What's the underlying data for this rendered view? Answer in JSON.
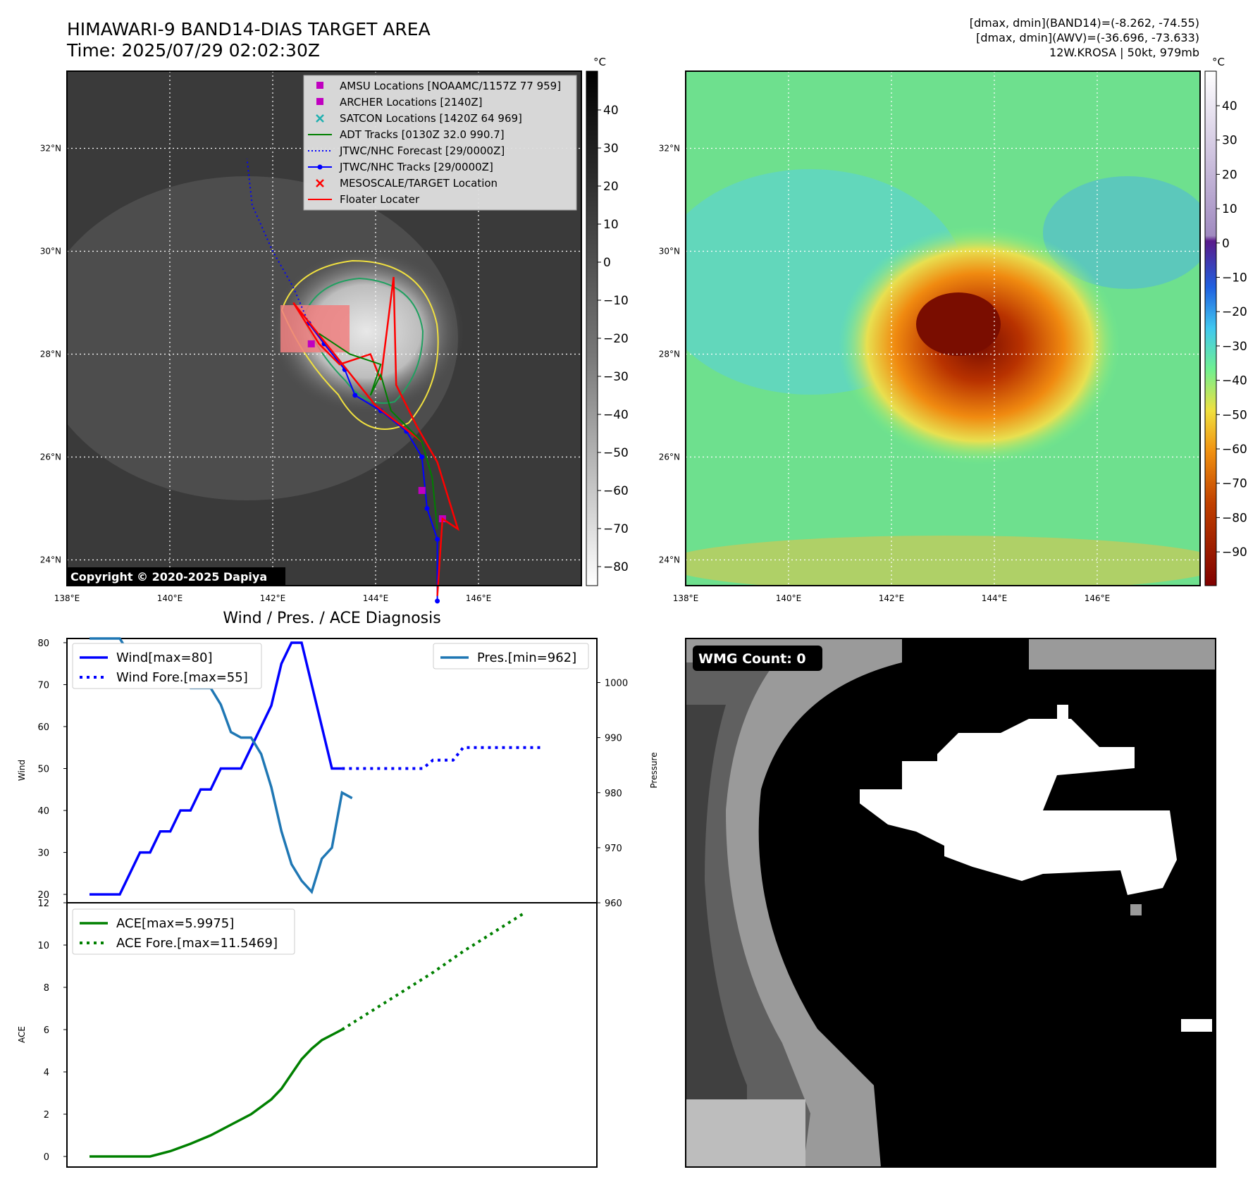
{
  "header": {
    "title": "HIMAWARI-9 BAND14-DIAS TARGET AREA",
    "time": "Time: 2025/07/29 02:02:30Z",
    "info1": "[dmax, dmin](BAND14)=(-8.262, -74.55)",
    "info2": "[dmax, dmin](AWV)=(-36.696, -73.633)",
    "info3": "12W.KROSA | 50kt, 979mb",
    "copyright": "Copyright © 2020-2025 Dapiya"
  },
  "map": {
    "lon_ticks": [
      "138°E",
      "140°E",
      "142°E",
      "144°E",
      "146°E"
    ],
    "lat_ticks": [
      "32°N",
      "30°N",
      "28°N",
      "26°N",
      "24°N"
    ],
    "ir_cbar": {
      "unit": "°C",
      "ticks": [
        "40",
        "30",
        "20",
        "10",
        "0",
        "−10",
        "−20",
        "−30",
        "−40",
        "−50",
        "−60",
        "−70",
        "−80"
      ]
    },
    "wv_cbar": {
      "unit": "°C",
      "ticks": [
        "40",
        "30",
        "20",
        "10",
        "0",
        "−10",
        "−20",
        "−30",
        "−40",
        "−50",
        "−60",
        "−70",
        "−80",
        "−90"
      ]
    },
    "legend": [
      {
        "label": "AMSU Locations [NOAAMC/1157Z 77 959]",
        "marker": "square",
        "color": "#c000c0"
      },
      {
        "label": "ARCHER Locations [2140Z]",
        "marker": "square",
        "color": "#c000c0"
      },
      {
        "label": "SATCON Locations [1420Z 64 969]",
        "marker": "x",
        "color": "#20b0b0"
      },
      {
        "label": "ADT Tracks [0130Z 32.0 990.7]",
        "marker": "line",
        "color": "#008000"
      },
      {
        "label": "JTWC/NHC Forecast [29/0000Z]",
        "marker": "dotted",
        "color": "#0000ff"
      },
      {
        "label": "JTWC/NHC Tracks [29/0000Z]",
        "marker": "line-dot",
        "color": "#0000ff"
      },
      {
        "label": "MESOSCALE/TARGET Location",
        "marker": "x",
        "color": "#ff0000"
      },
      {
        "label": "Floater Locater",
        "marker": "line",
        "color": "#ff0000"
      }
    ],
    "jtwc_track": [
      [
        145.2,
        23.2
      ],
      [
        145.2,
        24.4
      ],
      [
        145.0,
        25.0
      ],
      [
        144.9,
        26.0
      ],
      [
        144.6,
        26.5
      ],
      [
        144.1,
        26.9
      ],
      [
        143.6,
        27.2
      ],
      [
        143.4,
        27.7
      ],
      [
        143.0,
        28.2
      ],
      [
        142.7,
        28.6
      ]
    ],
    "jtwc_forecast": [
      [
        142.7,
        28.6
      ],
      [
        142.4,
        29.3
      ],
      [
        142.0,
        30.0
      ],
      [
        141.6,
        30.9
      ],
      [
        141.5,
        31.8
      ]
    ],
    "amsu": [
      [
        142.75,
        28.2
      ],
      [
        144.9,
        25.35
      ],
      [
        145.3,
        24.8
      ]
    ]
  },
  "wmg": {
    "label": "WMG Count: 0"
  },
  "chart_data": [
    {
      "type": "line",
      "title": "Wind / Pres. / ACE Diagnosis",
      "ylabel": "Wind",
      "ylim": [
        18,
        81
      ],
      "y2label": "Pressure",
      "y2lim": [
        960,
        1008
      ],
      "yticks": [
        20,
        30,
        40,
        50,
        60,
        70,
        80
      ],
      "y2ticks": [
        960,
        970,
        980,
        990,
        1000
      ],
      "series": [
        {
          "name": "Wind[max=80]",
          "color": "#0000ff",
          "style": "solid",
          "values": [
            [
              0,
              20
            ],
            [
              3,
              20
            ],
            [
              5,
              30
            ],
            [
              6,
              30
            ],
            [
              7,
              35
            ],
            [
              8,
              35
            ],
            [
              9,
              40
            ],
            [
              10,
              40
            ],
            [
              11,
              45
            ],
            [
              12,
              45
            ],
            [
              13,
              50
            ],
            [
              15,
              50
            ],
            [
              16,
              55
            ],
            [
              18,
              65
            ],
            [
              19,
              75
            ],
            [
              20,
              80
            ],
            [
              21,
              80
            ],
            [
              22,
              70
            ],
            [
              24,
              50
            ],
            [
              25,
              50
            ]
          ]
        },
        {
          "name": "Wind Fore.[max=55]",
          "color": "#0000ff",
          "style": "dotted",
          "values": [
            [
              25,
              50
            ],
            [
              33,
              50
            ],
            [
              34,
              52
            ],
            [
              36,
              52
            ],
            [
              37,
              55
            ],
            [
              45,
              55
            ]
          ]
        },
        {
          "name": "Pres.[min=962]",
          "color": "#1f77b4",
          "style": "solid",
          "axis": "right",
          "values": [
            [
              0,
              1008
            ],
            [
              3,
              1008
            ],
            [
              4,
              1005
            ],
            [
              5,
              1005
            ],
            [
              6,
              1004
            ],
            [
              7,
              1004
            ],
            [
              8,
              1001
            ],
            [
              9,
              1001
            ],
            [
              10,
              999
            ],
            [
              12,
              999
            ],
            [
              13,
              996
            ],
            [
              14,
              991
            ],
            [
              15,
              990
            ],
            [
              16,
              990
            ],
            [
              17,
              987
            ],
            [
              18,
              981
            ],
            [
              19,
              973
            ],
            [
              20,
              967
            ],
            [
              21,
              964
            ],
            [
              22,
              962
            ],
            [
              23,
              968
            ],
            [
              24,
              970
            ],
            [
              25,
              980
            ],
            [
              26,
              979
            ]
          ]
        }
      ]
    },
    {
      "type": "line",
      "ylabel": "ACE",
      "ylim": [
        -0.5,
        12
      ],
      "yticks": [
        0,
        2,
        4,
        6,
        8,
        10,
        12
      ],
      "series": [
        {
          "name": "ACE[max=5.9975]",
          "color": "#008000",
          "style": "solid",
          "values": [
            [
              0,
              0
            ],
            [
              3,
              0
            ],
            [
              6,
              0
            ],
            [
              8,
              0.25
            ],
            [
              10,
              0.6
            ],
            [
              12,
              1.0
            ],
            [
              14,
              1.5
            ],
            [
              16,
              2.0
            ],
            [
              18,
              2.7
            ],
            [
              19,
              3.2
            ],
            [
              20,
              3.9
            ],
            [
              21,
              4.6
            ],
            [
              22,
              5.1
            ],
            [
              23,
              5.5
            ],
            [
              24,
              5.75
            ],
            [
              25,
              6.0
            ]
          ]
        },
        {
          "name": "ACE Fore.[max=11.5469]",
          "color": "#008000",
          "style": "dotted",
          "values": [
            [
              25,
              6.0
            ],
            [
              28,
              6.9
            ],
            [
              31,
              7.8
            ],
            [
              34,
              8.7
            ],
            [
              37,
              9.7
            ],
            [
              40,
              10.6
            ],
            [
              43,
              11.5
            ]
          ]
        }
      ]
    }
  ]
}
